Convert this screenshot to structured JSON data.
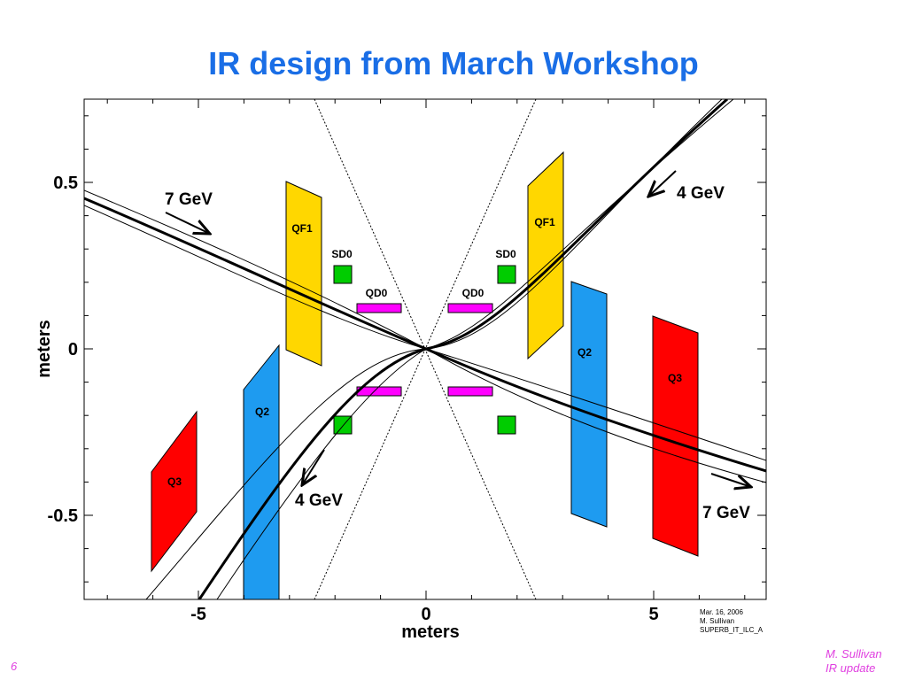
{
  "title": "IR design from March Workshop",
  "axes": {
    "x_label": "meters",
    "y_label": "meters",
    "x_ticks": [
      "-5",
      "0",
      "5"
    ],
    "y_ticks": [
      "0.5",
      "0",
      "-0.5"
    ]
  },
  "magnets": {
    "qf1": [
      "QF1",
      "QF1"
    ],
    "sd0": [
      "SD0",
      "SD0"
    ],
    "qd0": [
      "QD0",
      "QD0"
    ],
    "q2": [
      "Q2",
      "Q2"
    ],
    "q3": [
      "Q3",
      "Q3"
    ]
  },
  "beams": {
    "upper_left": "7 GeV",
    "upper_right": "4 GeV",
    "lower_left": "4 GeV",
    "lower_right": "7 GeV"
  },
  "note": [
    "Mar. 16, 2006",
    "M. Sullivan",
    "SUPERB_IT_ILC_A"
  ],
  "footer": {
    "page": "6",
    "author": "M. Sullivan",
    "topic": "IR update"
  }
}
